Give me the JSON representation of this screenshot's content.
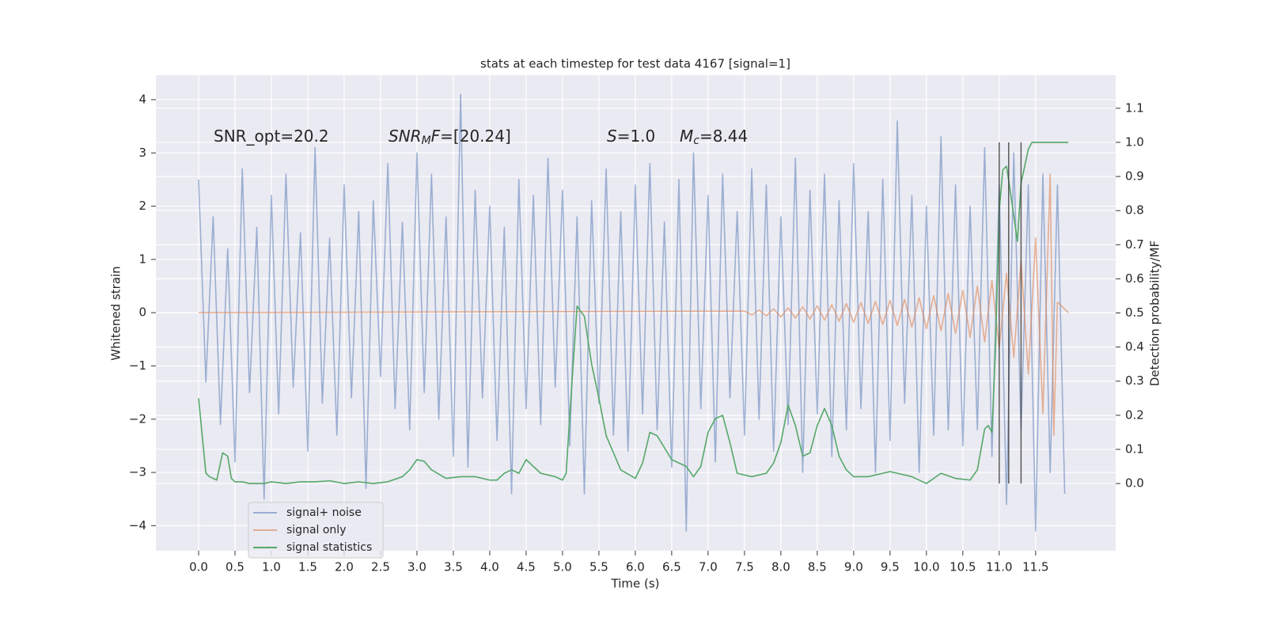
{
  "chart_data": {
    "type": "line",
    "title": "stats at each timestep for test data 4167 [signal=1]",
    "xlabel": "Time (s)",
    "ylabel": "Whitened strain",
    "y2label": "Detection probability/MF",
    "xlim": [
      -0.587,
      12.6
    ],
    "ylim": [
      -4.47,
      4.46
    ],
    "y2lim": [
      -0.197,
      1.197
    ],
    "xticks": [
      {
        "value": 0,
        "label": "0.0"
      },
      0.5,
      {
        "value": 1,
        "label": "1.0"
      },
      1.5,
      {
        "value": 2,
        "label": "2.0"
      },
      2.5,
      {
        "value": 3,
        "label": "3.0"
      },
      3.5,
      {
        "value": 4,
        "label": "4.0"
      },
      4.5,
      {
        "value": 5,
        "label": "5.0"
      },
      5.5,
      {
        "value": 6,
        "label": "6.0"
      },
      6.5,
      {
        "value": 7,
        "label": "7.0"
      },
      7.5,
      {
        "value": 8,
        "label": "8.0"
      },
      8.5,
      {
        "value": 9,
        "label": "9.0"
      },
      9.5,
      {
        "value": 10,
        "label": "10.0"
      },
      10.5,
      {
        "value": 11,
        "label": "11.0"
      },
      11.5
    ],
    "yticks": [
      {
        "value": -4,
        "label": "−4"
      },
      {
        "value": -3,
        "label": "−3"
      },
      {
        "value": -2,
        "label": "−2"
      },
      {
        "value": -1,
        "label": "−1"
      },
      0,
      1,
      2,
      3,
      4
    ],
    "y2ticks": [
      {
        "value": 0,
        "label": "0.0"
      },
      0.1,
      0.2,
      0.3,
      0.4,
      0.5,
      0.6,
      0.7,
      0.8,
      0.9,
      {
        "value": 1,
        "label": "1.0"
      },
      1.1
    ],
    "grid": true,
    "legend": "lower left",
    "annotations": [
      {
        "segments": [
          {
            "text": "SNR_opt=20.2"
          }
        ]
      },
      {
        "segments": [
          {
            "text": "SNR",
            "italic": true
          },
          {
            "text": "M",
            "italic": true,
            "sub": true
          },
          {
            "text": "F",
            "italic": true
          },
          {
            "text": "=[20.24]"
          }
        ]
      },
      {
        "segments": [
          {
            "text": "S",
            "italic": true
          },
          {
            "text": "=1.0"
          }
        ]
      },
      {
        "segments": [
          {
            "text": "M",
            "italic": true
          },
          {
            "text": "c",
            "italic": true,
            "sub": true
          },
          {
            "text": "=8.44"
          }
        ]
      }
    ],
    "series": [
      {
        "name": "signal+ noise",
        "color": "#4c72b0",
        "opacity": 0.5,
        "x": [
          0.0,
          0.1,
          0.2,
          0.3,
          0.4,
          0.5,
          0.6,
          0.7,
          0.8,
          0.9,
          1.0,
          1.1,
          1.2,
          1.3,
          1.4,
          1.5,
          1.6,
          1.7,
          1.8,
          1.9,
          2.0,
          2.1,
          2.2,
          2.3,
          2.4,
          2.5,
          2.6,
          2.7,
          2.8,
          2.9,
          3.0,
          3.1,
          3.2,
          3.3,
          3.4,
          3.5,
          3.6,
          3.7,
          3.8,
          3.9,
          4.0,
          4.1,
          4.2,
          4.3,
          4.4,
          4.5,
          4.6,
          4.7,
          4.8,
          4.9,
          5.0,
          5.1,
          5.2,
          5.3,
          5.4,
          5.5,
          5.6,
          5.7,
          5.8,
          5.9,
          6.0,
          6.1,
          6.2,
          6.3,
          6.4,
          6.5,
          6.6,
          6.7,
          6.8,
          6.9,
          7.0,
          7.1,
          7.2,
          7.3,
          7.4,
          7.5,
          7.6,
          7.7,
          7.8,
          7.9,
          8.0,
          8.1,
          8.2,
          8.3,
          8.4,
          8.5,
          8.6,
          8.7,
          8.8,
          8.9,
          9.0,
          9.1,
          9.2,
          9.3,
          9.4,
          9.5,
          9.6,
          9.7,
          9.8,
          9.9,
          10.0,
          10.1,
          10.2,
          10.3,
          10.4,
          10.5,
          10.6,
          10.7,
          10.8,
          10.9,
          11.0,
          11.1,
          11.2,
          11.3,
          11.4,
          11.5,
          11.6,
          11.7,
          11.8,
          11.9
        ],
        "values": [
          2.5,
          -1.3,
          1.8,
          -2.1,
          1.2,
          -2.8,
          2.7,
          -1.5,
          1.6,
          -3.5,
          2.2,
          -1.9,
          2.6,
          -1.4,
          1.5,
          -2.6,
          3.1,
          -1.7,
          1.4,
          -2.3,
          2.4,
          -1.6,
          1.9,
          -3.3,
          2.1,
          -1.2,
          2.8,
          -1.8,
          1.7,
          -2.2,
          3.0,
          -1.5,
          2.6,
          -2.0,
          1.8,
          -2.7,
          4.1,
          -2.9,
          2.3,
          -1.6,
          2.0,
          -2.4,
          1.6,
          -3.4,
          2.5,
          -1.8,
          2.2,
          -2.1,
          2.9,
          -1.4,
          2.3,
          -2.5,
          1.8,
          -3.4,
          2.1,
          -1.7,
          2.7,
          -2.3,
          1.9,
          -2.6,
          2.4,
          -1.9,
          2.8,
          -2.2,
          1.7,
          -2.9,
          2.5,
          -4.1,
          3.0,
          -1.8,
          2.2,
          -2.8,
          2.6,
          -1.6,
          1.9,
          -2.3,
          2.7,
          -2.0,
          2.4,
          -2.6,
          1.8,
          -2.1,
          2.9,
          -3.0,
          2.3,
          -1.9,
          2.6,
          -2.7,
          2.1,
          -2.2,
          2.8,
          -1.8,
          1.9,
          -3.0,
          2.5,
          -2.4,
          3.6,
          -1.7,
          2.2,
          -3.0,
          2.0,
          -2.3,
          3.3,
          -2.2,
          2.4,
          -2.5,
          2.0,
          -2.2,
          3.1,
          -2.7,
          2.4,
          -3.6,
          3.0,
          -2.2,
          2.4,
          -4.1,
          2.6,
          -3.0,
          2.4,
          -3.4
        ]
      },
      {
        "name": "signal only",
        "color": "#dd8452",
        "opacity": 0.6,
        "x": [
          0,
          7.5,
          7.6,
          7.7,
          7.8,
          7.9,
          8.0,
          8.1,
          8.2,
          8.3,
          8.4,
          8.5,
          8.6,
          8.7,
          8.8,
          8.9,
          9.0,
          9.1,
          9.2,
          9.3,
          9.4,
          9.5,
          9.6,
          9.7,
          9.8,
          9.9,
          10.0,
          10.1,
          10.2,
          10.3,
          10.4,
          10.5,
          10.6,
          10.7,
          10.8,
          10.9,
          11.0,
          11.1,
          11.2,
          11.3,
          11.4,
          11.5,
          11.6,
          11.7,
          11.75,
          11.8,
          11.95
        ],
        "values": [
          0,
          0.03,
          -0.04,
          0.05,
          -0.06,
          0.07,
          -0.08,
          0.09,
          -0.1,
          0.11,
          -0.12,
          0.13,
          -0.14,
          0.15,
          -0.16,
          0.17,
          -0.18,
          0.19,
          -0.2,
          0.21,
          -0.22,
          0.23,
          -0.24,
          0.25,
          -0.27,
          0.28,
          -0.3,
          0.32,
          -0.34,
          0.36,
          -0.39,
          0.42,
          -0.46,
          0.5,
          -0.55,
          0.6,
          -0.66,
          0.74,
          -0.84,
          0.97,
          -1.15,
          1.4,
          -1.9,
          2.6,
          -2.3,
          0.2,
          0
        ]
      },
      {
        "name": "signal statistics",
        "color": "#55a868",
        "opacity": 1,
        "axis": "y2",
        "x": [
          0,
          0.1,
          0.15,
          0.25,
          0.33,
          0.4,
          0.45,
          0.5,
          0.6,
          0.7,
          0.8,
          0.9,
          1.0,
          1.2,
          1.4,
          1.6,
          1.8,
          2.0,
          2.2,
          2.4,
          2.6,
          2.8,
          2.9,
          3.0,
          3.1,
          3.2,
          3.4,
          3.6,
          3.8,
          4.0,
          4.1,
          4.2,
          4.3,
          4.4,
          4.5,
          4.6,
          4.7,
          4.9,
          5.0,
          5.05,
          5.1,
          5.2,
          5.3,
          5.4,
          5.5,
          5.6,
          5.8,
          6.0,
          6.1,
          6.2,
          6.3,
          6.5,
          6.7,
          6.8,
          6.9,
          7.0,
          7.1,
          7.2,
          7.3,
          7.4,
          7.6,
          7.8,
          7.9,
          8.0,
          8.1,
          8.2,
          8.3,
          8.4,
          8.5,
          8.6,
          8.7,
          8.8,
          8.9,
          9.0,
          9.2,
          9.5,
          9.8,
          10.0,
          10.2,
          10.4,
          10.6,
          10.7,
          10.8,
          10.85,
          10.9,
          10.95,
          11.0,
          11.05,
          11.1,
          11.15,
          11.25,
          11.3,
          11.4,
          11.45,
          11.55,
          11.95
        ],
        "values": [
          0.25,
          0.03,
          0.02,
          0.01,
          0.09,
          0.08,
          0.015,
          0.005,
          0.005,
          0.0,
          0.0,
          0.0,
          0.005,
          0.0,
          0.005,
          0.005,
          0.008,
          0.0,
          0.005,
          0.0,
          0.005,
          0.02,
          0.04,
          0.07,
          0.065,
          0.04,
          0.015,
          0.02,
          0.02,
          0.01,
          0.01,
          0.03,
          0.04,
          0.03,
          0.07,
          0.05,
          0.03,
          0.02,
          0.01,
          0.03,
          0.2,
          0.52,
          0.49,
          0.35,
          0.25,
          0.14,
          0.04,
          0.015,
          0.06,
          0.15,
          0.14,
          0.07,
          0.05,
          0.02,
          0.05,
          0.15,
          0.19,
          0.2,
          0.12,
          0.03,
          0.02,
          0.03,
          0.06,
          0.12,
          0.23,
          0.17,
          0.08,
          0.09,
          0.17,
          0.22,
          0.17,
          0.08,
          0.04,
          0.02,
          0.02,
          0.035,
          0.02,
          0.0,
          0.03,
          0.015,
          0.01,
          0.04,
          0.16,
          0.17,
          0.15,
          0.4,
          0.8,
          0.92,
          0.93,
          0.86,
          0.71,
          0.88,
          0.98,
          1.0,
          1.0,
          1.0
        ]
      }
    ],
    "vlines": {
      "x": [
        11.0,
        11.13,
        11.3
      ],
      "ymin": 0,
      "ymax": 1,
      "axis": "y2",
      "color": "#404040"
    }
  }
}
